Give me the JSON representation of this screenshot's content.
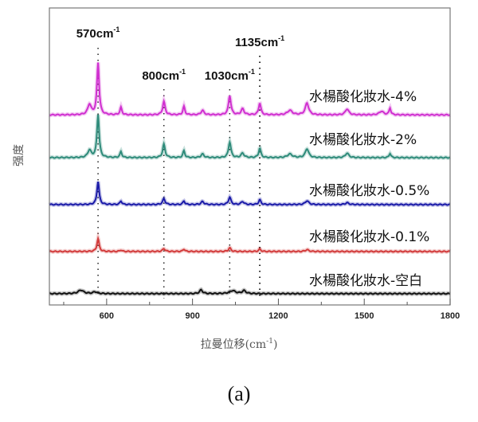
{
  "chart_data": {
    "type": "line",
    "title": "",
    "caption": "(a)",
    "xlabel": "拉曼位移(cm",
    "xlabel_sup": "-1",
    "xlabel_close": ")",
    "ylabel": "强度",
    "xlim": [
      400,
      1800
    ],
    "ylim": [
      0,
      100
    ],
    "xticks": [
      600,
      900,
      1200,
      1500,
      1800
    ],
    "xtick_labels": [
      "600",
      "900",
      "1200",
      "1500",
      "1800"
    ],
    "minor_xticks": [
      450,
      750,
      1050,
      1350,
      1650
    ],
    "grid": false,
    "legend": "labels at right of each curve",
    "annotations": [
      {
        "x": 570,
        "text": "570cm",
        "sup": "-1"
      },
      {
        "x": 800,
        "text": "800cm",
        "sup": "-1"
      },
      {
        "x": 1030,
        "text": "1030cm",
        "sup": "-1"
      },
      {
        "x": 1135,
        "text": "1135cm",
        "sup": "-1"
      }
    ],
    "series": [
      {
        "name": "水楊酸化妝水-4%",
        "color": "#d02fd0",
        "baseline": 64,
        "peaks": [
          [
            540,
            3.5,
            14
          ],
          [
            570,
            17.5,
            9
          ],
          [
            650,
            2.5,
            8
          ],
          [
            800,
            4.5,
            10
          ],
          [
            870,
            2.8,
            8
          ],
          [
            935,
            1.5,
            12
          ],
          [
            1030,
            6.5,
            10
          ],
          [
            1075,
            2,
            12
          ],
          [
            1135,
            4,
            9
          ],
          [
            1240,
            1.5,
            20
          ],
          [
            1300,
            4,
            14
          ],
          [
            1440,
            2,
            14
          ],
          [
            1560,
            1.2,
            18
          ],
          [
            1590,
            2.3,
            7
          ]
        ]
      },
      {
        "name": "水楊酸化妝水-2%",
        "color": "#2e8b7a",
        "baseline": 49.6,
        "peaks": [
          [
            540,
            2.5,
            14
          ],
          [
            570,
            14.5,
            9
          ],
          [
            650,
            2,
            8
          ],
          [
            800,
            4.5,
            10
          ],
          [
            870,
            2.3,
            8
          ],
          [
            935,
            1.2,
            12
          ],
          [
            1030,
            5.3,
            10
          ],
          [
            1075,
            1.5,
            12
          ],
          [
            1135,
            3.2,
            9
          ],
          [
            1240,
            1.2,
            20
          ],
          [
            1300,
            3,
            14
          ],
          [
            1440,
            1.5,
            14
          ],
          [
            1590,
            1.5,
            7
          ]
        ]
      },
      {
        "name": "水楊酸化妝水-0.5%",
        "color": "#1a1aa8",
        "baseline": 33.8,
        "peaks": [
          [
            570,
            7.8,
            9
          ],
          [
            650,
            1.2,
            8
          ],
          [
            800,
            2,
            10
          ],
          [
            870,
            1.2,
            8
          ],
          [
            935,
            1,
            12
          ],
          [
            1030,
            2.5,
            10
          ],
          [
            1075,
            1,
            12
          ],
          [
            1135,
            1.6,
            9
          ],
          [
            1300,
            1.3,
            14
          ],
          [
            1440,
            0.6,
            14
          ]
        ]
      },
      {
        "name": "水楊酸化妝水-0.1%",
        "color": "#d23a3a",
        "baseline": 18,
        "peaks": [
          [
            570,
            4.3,
            9
          ],
          [
            650,
            0.5,
            8
          ],
          [
            800,
            1,
            10
          ],
          [
            870,
            0.8,
            8
          ],
          [
            1030,
            1.2,
            10
          ],
          [
            1135,
            0.8,
            9
          ],
          [
            1300,
            0.6,
            14
          ]
        ]
      },
      {
        "name": "水楊酸化妝水-空白",
        "color": "#111111",
        "baseline": 3.8,
        "peaks": [
          [
            510,
            1.2,
            22
          ],
          [
            560,
            0.6,
            18
          ],
          [
            930,
            1.3,
            12
          ],
          [
            1040,
            1,
            25
          ],
          [
            1080,
            1,
            15
          ]
        ]
      }
    ]
  }
}
